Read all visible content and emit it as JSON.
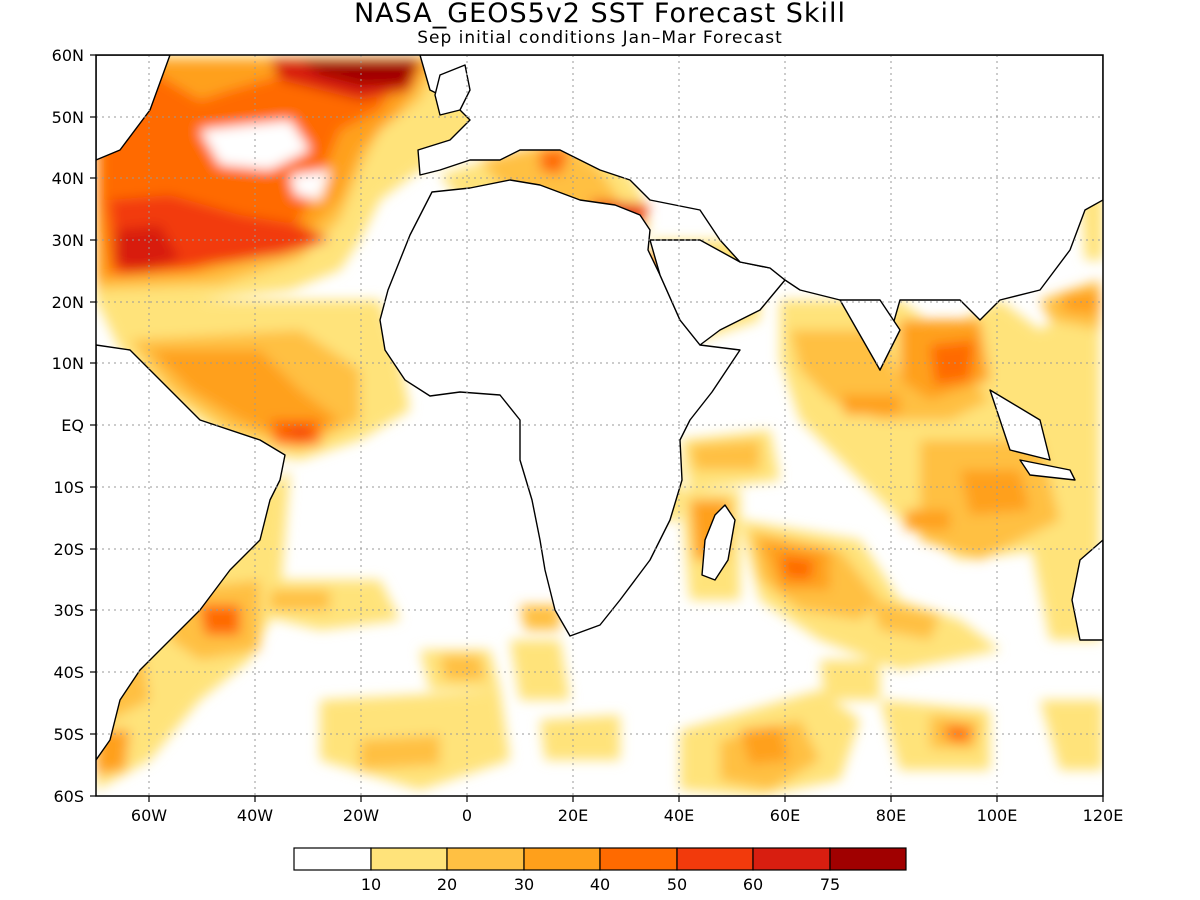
{
  "title": "NASA_GEOS5v2 SST Forecast Skill",
  "subtitle": "Sep initial conditions   Jan–Mar Forecast",
  "colors": {
    "levels": [
      "#ffffff",
      "#ffe37a",
      "#ffc043",
      "#ffa01b",
      "#ff6a00",
      "#f23a0c",
      "#d81e10",
      "#a00000"
    ],
    "coast": "#000000",
    "grid": "#9a9a9a"
  },
  "map": {
    "lon_labels": [
      "60W",
      "40W",
      "20W",
      "0",
      "20E",
      "40E",
      "60E",
      "80E",
      "100E",
      "120E"
    ],
    "lat_labels": [
      "60N",
      "50N",
      "40N",
      "30N",
      "20N",
      "10N",
      "EQ",
      "10S",
      "20S",
      "30S",
      "40S",
      "50S",
      "60S"
    ],
    "lon_range": [
      -70,
      120
    ],
    "lat_range": [
      -60,
      60
    ]
  },
  "legend": {
    "labels": [
      "10",
      "20",
      "30",
      "40",
      "50",
      "60",
      "75"
    ]
  },
  "chart_data": {
    "type": "heatmap",
    "title": "NASA_GEOS5v2 SST Forecast Skill",
    "subtitle": "Sep initial conditions   Jan–Mar Forecast",
    "x_range": [
      -70,
      120
    ],
    "y_range": [
      -60,
      60
    ],
    "color_levels": [
      10,
      20,
      30,
      40,
      50,
      60,
      75
    ],
    "grid": true
  }
}
